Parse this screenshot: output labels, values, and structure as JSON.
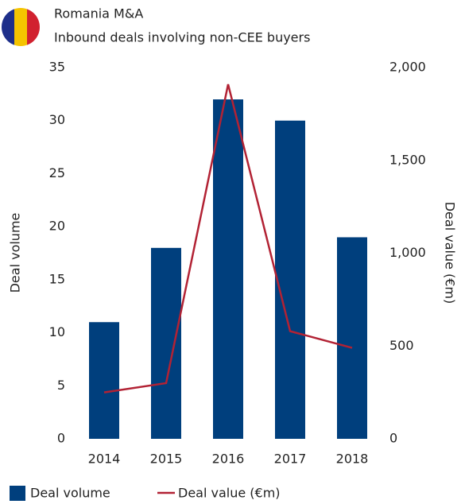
{
  "chart_data": {
    "type": "bar",
    "title": "Romania M&A",
    "subtitle": "Inbound deals involving non-CEE buyers",
    "categories": [
      "2014",
      "2015",
      "2016",
      "2017",
      "2018"
    ],
    "series": [
      {
        "name": "Deal volume",
        "type": "bar",
        "color": "#003f7d",
        "values": [
          11,
          18,
          32,
          30,
          19
        ]
      },
      {
        "name": "Deal value (€m)",
        "type": "line",
        "axis": "y2",
        "color": "#b22234",
        "values": [
          250,
          300,
          1910,
          580,
          490
        ]
      }
    ],
    "ylabel": "Deal volume",
    "y2label": "Deal value (€m)",
    "ylim": [
      0,
      35
    ],
    "yticks": [
      0,
      5,
      10,
      15,
      20,
      25,
      30,
      35
    ],
    "y2lim": [
      0,
      2000
    ],
    "y2ticks": [
      0,
      500,
      {
        "value": 1000,
        "label": "1,000"
      },
      {
        "value": 1500,
        "label": "1,500"
      },
      {
        "value": 2000,
        "label": "2,000"
      }
    ],
    "grid": false,
    "legend": "bottom-left"
  }
}
